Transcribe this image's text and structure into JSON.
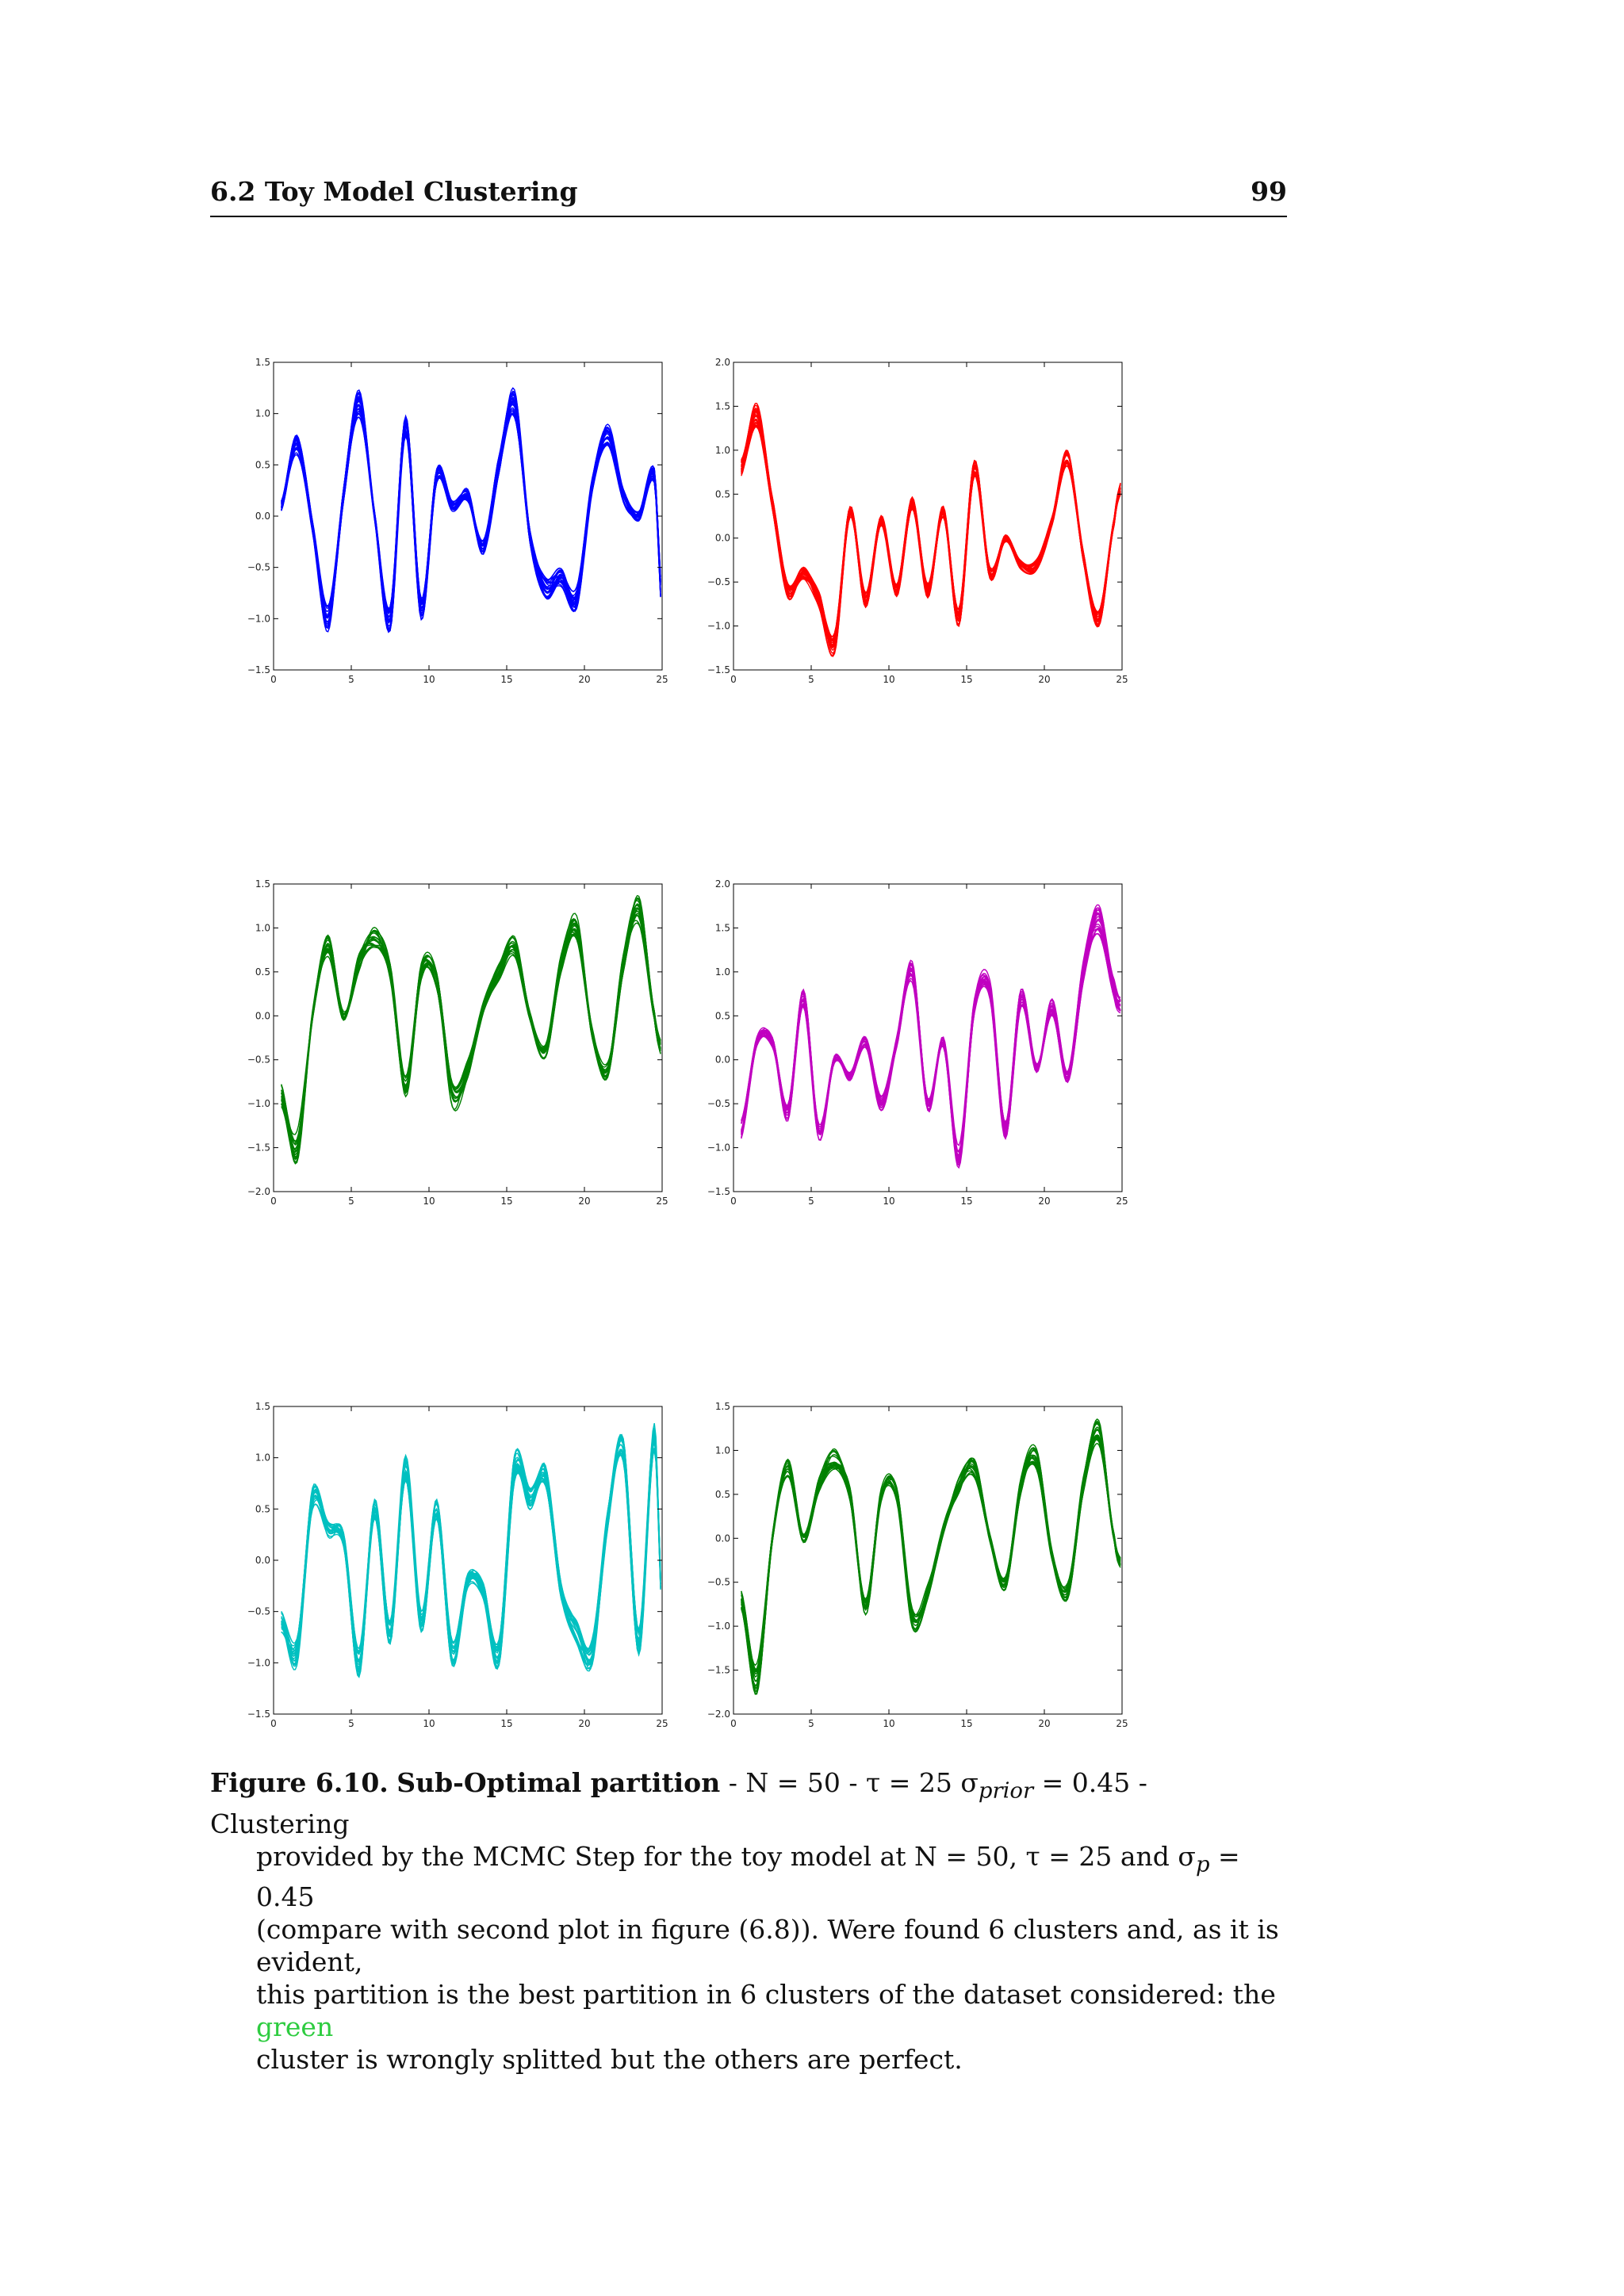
{
  "header": {
    "section": "6.2 Toy Model Clustering",
    "page": "99"
  },
  "chart_data": [
    {
      "type": "line",
      "title": "",
      "color": "#0000ff",
      "xlim": [
        0,
        25
      ],
      "ylim": [
        -1.5,
        1.5
      ],
      "xticks": [
        "0",
        "5",
        "10",
        "15",
        "20",
        "25"
      ],
      "yticks": [
        "1.5",
        "1.0",
        "0.5",
        "0.0",
        "−0.5",
        "−1.0",
        "−1.5"
      ],
      "x": [
        0.5,
        1.5,
        2.5,
        3.5,
        4.5,
        5.5,
        6.5,
        7.5,
        8.5,
        9.5,
        10.5,
        11.5,
        12.5,
        13.5,
        14.5,
        15.5,
        16.5,
        17.5,
        18.5,
        19.5,
        20.5,
        21.5,
        22.5,
        23.5,
        24.5,
        25
      ],
      "center": [
        0.1,
        0.7,
        -0.1,
        -1.0,
        0.2,
        1.1,
        0.0,
        -1.0,
        0.9,
        -0.9,
        0.4,
        0.1,
        0.2,
        -0.3,
        0.5,
        1.1,
        -0.2,
        -0.7,
        -0.6,
        -0.8,
        0.3,
        0.8,
        0.2,
        0.0,
        0.4,
        -0.9
      ],
      "n_curves": 24,
      "spread": 0.08
    },
    {
      "type": "line",
      "title": "",
      "color": "#ff0000",
      "xlim": [
        0,
        25
      ],
      "ylim": [
        -1.5,
        2.0
      ],
      "xticks": [
        "0",
        "5",
        "10",
        "15",
        "20",
        "25"
      ],
      "yticks": [
        "2.0",
        "1.5",
        "1.0",
        "0.5",
        "0.0",
        "−0.5",
        "−1.0",
        "−1.5"
      ],
      "x": [
        0.5,
        1.5,
        2.5,
        3.5,
        4.5,
        5.5,
        6.5,
        7.5,
        8.5,
        9.5,
        10.5,
        11.5,
        12.5,
        13.5,
        14.5,
        15.5,
        16.5,
        17.5,
        18.5,
        19.5,
        20.5,
        21.5,
        22.5,
        23.5,
        24.5,
        25
      ],
      "center": [
        0.8,
        1.4,
        0.4,
        -0.6,
        -0.4,
        -0.7,
        -1.2,
        0.3,
        -0.7,
        0.2,
        -0.6,
        0.4,
        -0.6,
        0.3,
        -0.9,
        0.8,
        -0.4,
        0.0,
        -0.3,
        -0.3,
        0.2,
        0.9,
        -0.2,
        -0.9,
        0.2,
        0.6
      ],
      "n_curves": 24,
      "spread": 0.07
    },
    {
      "type": "line",
      "title": "",
      "color": "#008000",
      "xlim": [
        0,
        25
      ],
      "ylim": [
        -2.0,
        1.5
      ],
      "xticks": [
        "0",
        "5",
        "10",
        "15",
        "20",
        "25"
      ],
      "yticks": [
        "1.5",
        "1.0",
        "0.5",
        "0.0",
        "−0.5",
        "−1.0",
        "−1.5",
        "−2.0"
      ],
      "x": [
        0.5,
        1.5,
        2.5,
        3.5,
        4.5,
        5.5,
        6.5,
        7.5,
        8.5,
        9.5,
        10.5,
        11.5,
        12.5,
        13.5,
        14.5,
        15.5,
        16.5,
        17.5,
        18.5,
        19.5,
        20.5,
        21.5,
        22.5,
        23.5,
        24.5,
        25
      ],
      "center": [
        -0.9,
        -1.5,
        0.0,
        0.8,
        0.0,
        0.6,
        0.9,
        0.5,
        -0.8,
        0.5,
        0.4,
        -0.9,
        -0.6,
        0.1,
        0.5,
        0.8,
        0.0,
        -0.4,
        0.6,
        1.0,
        -0.2,
        -0.6,
        0.6,
        1.2,
        0.0,
        -0.4
      ],
      "n_curves": 18,
      "spread": 0.09
    },
    {
      "type": "line",
      "title": "",
      "color": "#c000c0",
      "xlim": [
        0,
        25
      ],
      "ylim": [
        -1.5,
        2.0
      ],
      "xticks": [
        "0",
        "5",
        "10",
        "15",
        "20",
        "25"
      ],
      "yticks": [
        "2.0",
        "1.5",
        "1.0",
        "0.5",
        "0.0",
        "−0.5",
        "−1.0",
        "−1.5"
      ],
      "x": [
        0.5,
        1.5,
        2.5,
        3.5,
        4.5,
        5.5,
        6.5,
        7.5,
        8.5,
        9.5,
        10.5,
        11.5,
        12.5,
        13.5,
        14.5,
        15.5,
        16.5,
        17.5,
        18.5,
        19.5,
        20.5,
        21.5,
        22.5,
        23.5,
        24.5,
        25
      ],
      "center": [
        -0.8,
        0.2,
        0.2,
        -0.6,
        0.7,
        -0.8,
        0.0,
        -0.2,
        0.2,
        -0.5,
        0.2,
        1.0,
        -0.5,
        0.2,
        -1.1,
        0.6,
        0.8,
        -0.8,
        0.7,
        -0.1,
        0.6,
        -0.2,
        1.0,
        1.6,
        0.8,
        0.6
      ],
      "n_curves": 20,
      "spread": 0.08
    },
    {
      "type": "line",
      "title": "",
      "color": "#00c0c0",
      "xlim": [
        0,
        25
      ],
      "ylim": [
        -1.5,
        1.5
      ],
      "xticks": [
        "0",
        "5",
        "10",
        "15",
        "20",
        "25"
      ],
      "yticks": [
        "1.5",
        "1.0",
        "0.5",
        "0.0",
        "−0.5",
        "−1.0",
        "−1.5"
      ],
      "x": [
        0.5,
        1.5,
        2.5,
        3.5,
        4.5,
        5.5,
        6.5,
        7.5,
        8.5,
        9.5,
        10.5,
        11.5,
        12.5,
        13.5,
        14.5,
        15.5,
        16.5,
        17.5,
        18.5,
        19.5,
        20.5,
        21.5,
        22.5,
        23.5,
        24.5,
        25
      ],
      "center": [
        -0.6,
        -0.9,
        0.6,
        0.3,
        0.2,
        -1.0,
        0.5,
        -0.7,
        0.9,
        -0.6,
        0.5,
        -0.9,
        -0.2,
        -0.3,
        -0.9,
        0.9,
        0.6,
        0.8,
        -0.3,
        -0.7,
        -0.9,
        0.4,
        1.1,
        -0.8,
        1.2,
        -0.5
      ],
      "n_curves": 22,
      "spread": 0.09
    },
    {
      "type": "line",
      "title": "",
      "color": "#008000",
      "xlim": [
        0,
        25
      ],
      "ylim": [
        -2.0,
        1.5
      ],
      "xticks": [
        "0",
        "5",
        "10",
        "15",
        "20",
        "25"
      ],
      "yticks": [
        "1.5",
        "1.0",
        "0.5",
        "0.0",
        "−0.5",
        "−1.0",
        "−1.5",
        "−2.0"
      ],
      "x": [
        0.5,
        1.5,
        2.5,
        3.5,
        4.5,
        5.5,
        6.5,
        7.5,
        8.5,
        9.5,
        10.5,
        11.5,
        12.5,
        13.5,
        14.5,
        15.5,
        16.5,
        17.5,
        18.5,
        19.5,
        20.5,
        21.5,
        22.5,
        23.5,
        24.5,
        25
      ],
      "center": [
        -0.7,
        -1.6,
        0.0,
        0.8,
        0.0,
        0.6,
        0.9,
        0.5,
        -0.8,
        0.5,
        0.5,
        -0.9,
        -0.6,
        0.1,
        0.6,
        0.8,
        0.0,
        -0.5,
        0.6,
        0.9,
        -0.2,
        -0.6,
        0.6,
        1.2,
        0.0,
        -0.3
      ],
      "n_curves": 18,
      "spread": 0.08
    }
  ],
  "caption": {
    "label": "Figure 6.10.",
    "bold_title": "Sub-Optimal partition",
    "line1_rest": " - N = 50 - τ = 25 σ",
    "sub_prior": "prior",
    "line1_tail": " = 0.45 - Clustering",
    "line2": "provided by the MCMC Step for the toy model at N = 50, τ = 25 and σ",
    "sub_p": "p",
    "line2_tail": " = 0.45",
    "line3": "(compare with second plot in figure (6.8)). Were found 6 clusters and, as it is evident,",
    "line4": "this partition is the best partition in 6 clusters of the dataset considered: the ",
    "green_word": "green",
    "line5": "cluster is wrongly splitted but the others are perfect."
  }
}
